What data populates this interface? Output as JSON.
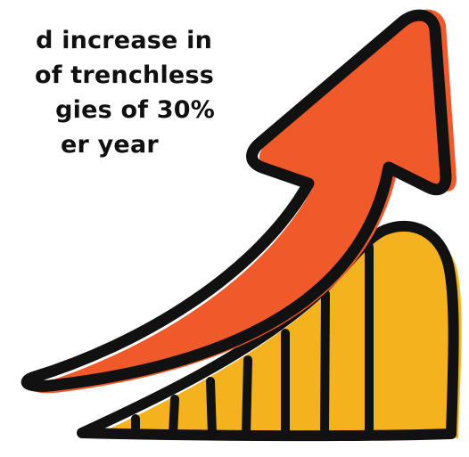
{
  "caption": {
    "line1": "d increase in",
    "line2": "of trenchless",
    "line3": "gies of 30%",
    "line4": "er year"
  },
  "graphic": {
    "arrow_icon": "upward-trend-arrow-icon",
    "bars_icon": "ascending-bars-icon",
    "bar_count": 7,
    "colors": {
      "arrow_fill": "#f0592a",
      "bars_fill": "#f5b21f",
      "outline": "#111111",
      "background": "#ffffff"
    }
  }
}
